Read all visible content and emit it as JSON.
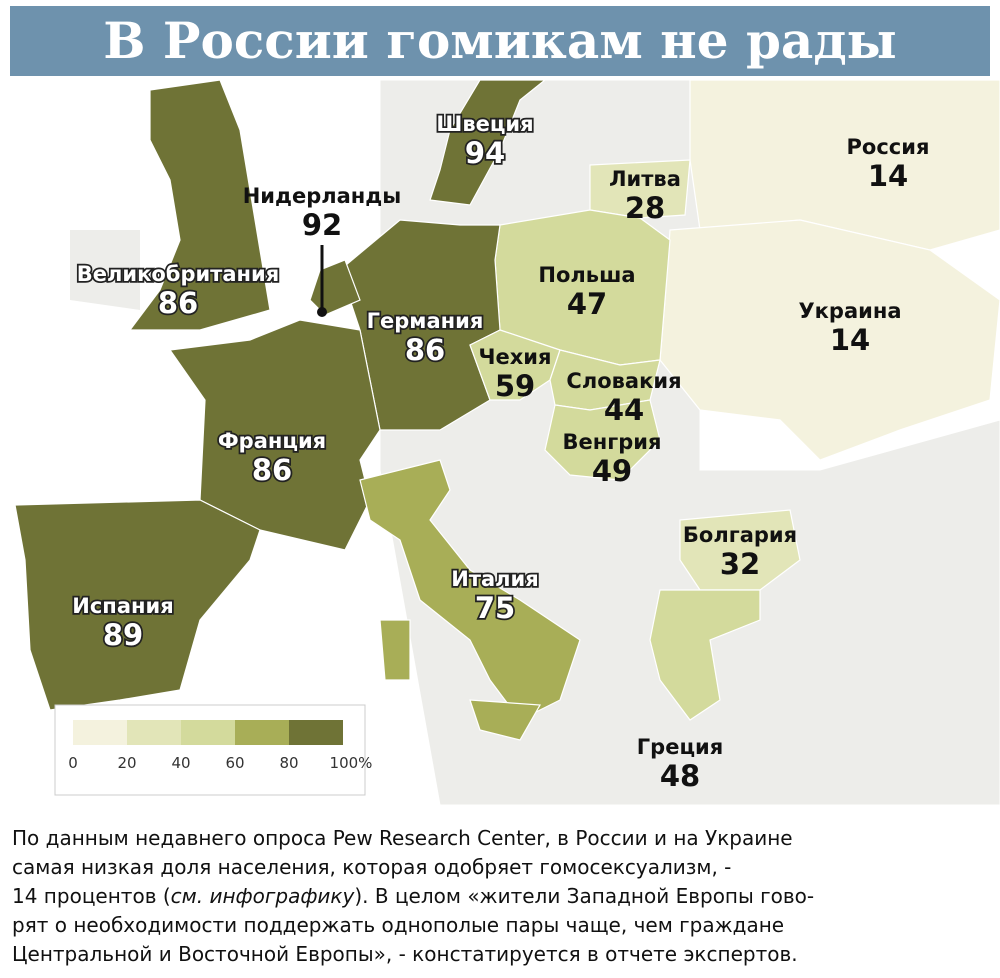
{
  "header": {
    "title": "В России гомикам не рады"
  },
  "countries": [
    {
      "name": "Швеция",
      "value": 94
    },
    {
      "name": "Нидерланды",
      "value": 92
    },
    {
      "name": "Великобритания",
      "value": 86
    },
    {
      "name": "Германия",
      "value": 86
    },
    {
      "name": "Франция",
      "value": 86
    },
    {
      "name": "Испания",
      "value": 89
    },
    {
      "name": "Италия",
      "value": 75
    },
    {
      "name": "Чехия",
      "value": 59
    },
    {
      "name": "Польша",
      "value": 47
    },
    {
      "name": "Словакия",
      "value": 44
    },
    {
      "name": "Венгрия",
      "value": 49
    },
    {
      "name": "Литва",
      "value": 28
    },
    {
      "name": "Болгария",
      "value": 32
    },
    {
      "name": "Греция",
      "value": 48
    },
    {
      "name": "Россия",
      "value": 14
    },
    {
      "name": "Украина",
      "value": 14
    }
  ],
  "legend": {
    "ticks": [
      0,
      20,
      40,
      60,
      80,
      {
        "value": 100,
        "label": "100%"
      }
    ],
    "colors": [
      "#f4f2de",
      "#e2e5b8",
      "#d3da9c",
      "#a8ae57",
      "#6f7336"
    ]
  },
  "caption": {
    "lines": [
      [
        {
          "text": "По данным недавнего опроса Pew Research Center, в России и на Украине"
        }
      ],
      [
        {
          "text": "самая низкая доля населения, которая одобряет гомосексуализм, -"
        }
      ],
      [
        {
          "text": "14 процентов ("
        },
        {
          "text": "см. инфографику",
          "italic": true
        },
        {
          "text": "). В целом «жители Западной Европы гово-"
        }
      ],
      [
        {
          "text": "рят о необходимости поддержать однополые пары чаще, чем граждане"
        }
      ],
      [
        {
          "text": "Центральной и Восточной Европы», - констатируется в отчете экспертов."
        }
      ]
    ]
  }
}
